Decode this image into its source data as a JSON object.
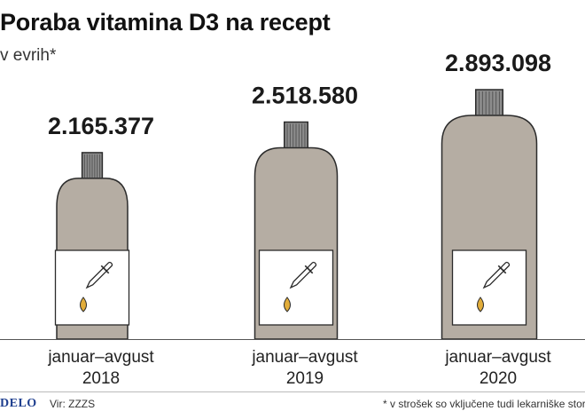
{
  "title": "Poraba vitamina D3 na recept",
  "subtitle": "v evrih*",
  "chart_data": {
    "type": "bar",
    "title": "Poraba vitamina D3 na recept",
    "unit_note": "v evrih*",
    "categories": [
      "januar–avgust 2018",
      "januar–avgust 2019",
      "januar–avgust 2020"
    ],
    "category_lines": [
      [
        "januar–avgust",
        "2018"
      ],
      [
        "januar–avgust",
        "2019"
      ],
      [
        "januar–avgust",
        "2020"
      ]
    ],
    "values": [
      2165377,
      2518580,
      2893098
    ],
    "value_labels": [
      "2.165.377",
      "2.518.580",
      "2.893.098"
    ],
    "marks": "bottles",
    "colors": {
      "bottle": "#b5ada3",
      "cap": "#8c8c8c",
      "label": "#ffffff",
      "outline": "#2b2b2b",
      "drop": "#e2ad3a"
    }
  },
  "footer": {
    "logo": "DELO",
    "source": "Vir: ZZZS",
    "note": "* v strošek so vključene tudi lekarniške storitve"
  }
}
